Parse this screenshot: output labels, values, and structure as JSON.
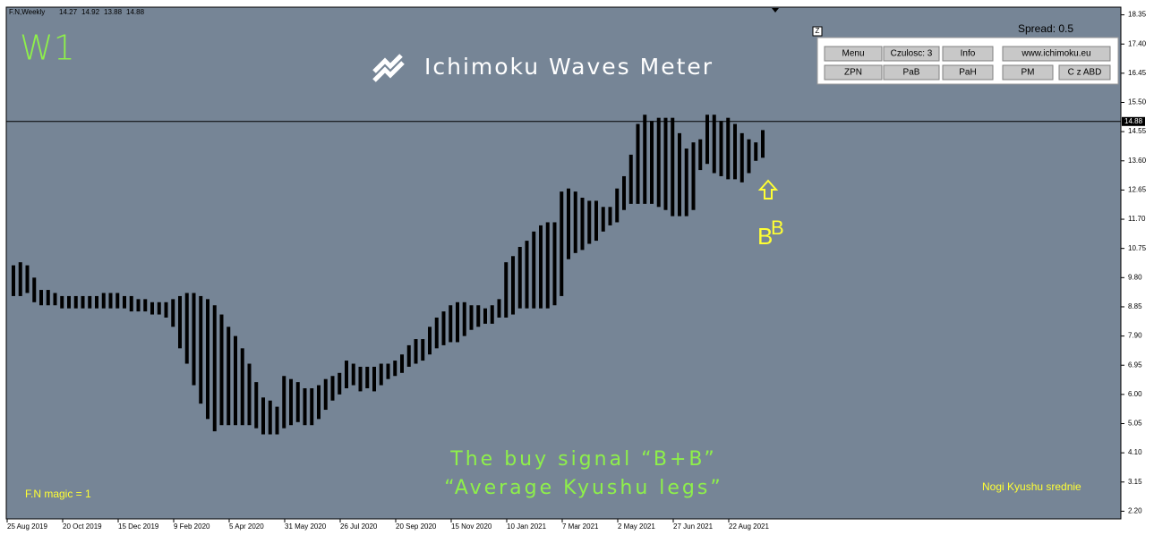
{
  "chart_data": {
    "type": "range_bar",
    "symbol": "F.N,Weekly",
    "ohlc": [
      14.27,
      14.92,
      13.88,
      14.88
    ],
    "timeframe": "W1",
    "title": "Ichimoku Waves Meter",
    "last_price": 14.88,
    "color": "#000000",
    "ylim": [
      1.95,
      18.6
    ],
    "yticks": [
      18.35,
      {
        "value": 17.4,
        "label": "17.40"
      },
      16.45,
      {
        "value": 15.5,
        "label": "15.50"
      },
      14.55,
      {
        "value": 13.6,
        "label": "13.60"
      },
      12.65,
      {
        "value": 11.7,
        "label": "11.70"
      },
      10.75,
      {
        "value": 9.8,
        "label": "9.80"
      },
      8.85,
      {
        "value": 7.9,
        "label": "7.90"
      },
      6.95,
      {
        "value": 6.0,
        "label": "6.00"
      },
      5.05,
      {
        "value": 4.1,
        "label": "4.10"
      },
      3.15,
      {
        "value": 2.2,
        "label": "2.20"
      }
    ],
    "categories": [
      "25 Aug 2019",
      null,
      null,
      null,
      null,
      null,
      null,
      null,
      "20 Oct 2019",
      null,
      null,
      null,
      null,
      null,
      null,
      null,
      "15 Dec 2019",
      null,
      null,
      null,
      null,
      null,
      null,
      null,
      "9 Feb 2020",
      null,
      null,
      null,
      null,
      null,
      null,
      null,
      "5 Apr 2020",
      null,
      null,
      null,
      null,
      null,
      null,
      null,
      "31 May 2020",
      null,
      null,
      null,
      null,
      null,
      null,
      null,
      "26 Jul 2020",
      null,
      null,
      null,
      null,
      null,
      null,
      null,
      "20 Sep 2020",
      null,
      null,
      null,
      null,
      null,
      null,
      null,
      "15 Nov 2020",
      null,
      null,
      null,
      null,
      null,
      null,
      null,
      "10 Jan 2021",
      null,
      null,
      null,
      null,
      null,
      null,
      null,
      "7 Mar 2021",
      null,
      null,
      null,
      null,
      null,
      null,
      null,
      "2 May 2021",
      null,
      null,
      null,
      null,
      null,
      null,
      null,
      "27 Jun 2021",
      null,
      null,
      null,
      null,
      null,
      null,
      null,
      "22 Aug 2021",
      null,
      null,
      null,
      null
    ],
    "lows": [
      9.2,
      9.2,
      9.3,
      9.0,
      8.9,
      8.9,
      8.9,
      8.8,
      8.8,
      8.8,
      8.8,
      8.8,
      8.8,
      8.8,
      8.8,
      8.8,
      8.8,
      8.7,
      8.7,
      8.7,
      8.6,
      8.6,
      8.5,
      8.2,
      7.5,
      7.0,
      6.3,
      5.7,
      5.2,
      4.8,
      5.0,
      5.0,
      5.0,
      5.0,
      5.0,
      4.9,
      4.7,
      4.7,
      4.7,
      4.9,
      5.0,
      5.1,
      5.0,
      5.0,
      5.2,
      5.5,
      5.8,
      6.0,
      6.2,
      6.3,
      6.1,
      6.2,
      6.1,
      6.3,
      6.5,
      6.6,
      6.7,
      6.9,
      7.0,
      7.1,
      7.3,
      7.5,
      7.6,
      7.7,
      7.7,
      7.9,
      8.1,
      8.2,
      8.3,
      8.3,
      8.5,
      8.5,
      8.6,
      8.8,
      8.8,
      8.8,
      8.8,
      8.8,
      8.9,
      9.2,
      10.4,
      10.6,
      10.7,
      10.9,
      11.0,
      11.3,
      11.5,
      11.6,
      12.0,
      12.2,
      12.2,
      12.2,
      12.2,
      12.1,
      12.0,
      11.8,
      11.8,
      11.8,
      12.0,
      13.3,
      13.5,
      13.2,
      13.1,
      13.0,
      13.0,
      12.9,
      13.2,
      13.6,
      13.7
    ],
    "highs": [
      10.2,
      10.3,
      10.2,
      9.8,
      9.4,
      9.4,
      9.3,
      9.2,
      9.2,
      9.2,
      9.2,
      9.2,
      9.2,
      9.3,
      9.3,
      9.3,
      9.2,
      9.2,
      9.1,
      9.1,
      9.0,
      9.0,
      9.0,
      9.1,
      9.2,
      9.3,
      9.3,
      9.2,
      9.1,
      8.9,
      8.6,
      8.2,
      7.9,
      7.5,
      7.0,
      6.4,
      5.9,
      5.8,
      5.6,
      6.6,
      6.5,
      6.4,
      6.2,
      6.2,
      6.3,
      6.5,
      6.6,
      6.7,
      7.1,
      7.0,
      6.9,
      6.9,
      6.9,
      7.0,
      7.0,
      7.1,
      7.3,
      7.6,
      7.8,
      7.8,
      8.2,
      8.5,
      8.7,
      8.9,
      9.0,
      9.0,
      8.9,
      8.9,
      8.8,
      8.9,
      9.1,
      10.3,
      10.5,
      10.8,
      11.0,
      11.3,
      11.5,
      11.6,
      11.6,
      12.6,
      12.7,
      12.6,
      12.4,
      12.3,
      12.3,
      12.1,
      12.1,
      12.7,
      13.1,
      13.8,
      14.8,
      15.1,
      14.9,
      15.0,
      15.0,
      15.0,
      14.5,
      14.0,
      14.2,
      14.3,
      15.1,
      15.1,
      14.9,
      15.0,
      14.8,
      14.5,
      14.3,
      14.2,
      14.6
    ],
    "annotations": [
      "The buy signal “B+B”",
      "“Average Kyushu legs”",
      "F.N magic = 1",
      "Nogi Kyushu srednie",
      "B",
      "B"
    ],
    "panel": {
      "corner": "Z",
      "spread": "Spread: 0.5",
      "buttons": [
        "Menu",
        "Czulosc: 3",
        "Info",
        "www.ichimoku.eu",
        "ZPN",
        "PaB",
        "PaH",
        "PM",
        "C z ABD"
      ]
    }
  }
}
